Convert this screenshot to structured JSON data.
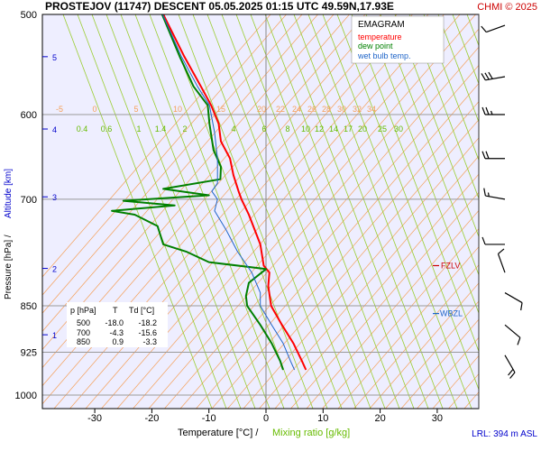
{
  "header": {
    "title": "PROSTEJOV (11747)   DESCENT   05.05.2025 01:15 UTC   49.59N,17.93E",
    "copyright": "CHMI © 2025"
  },
  "legend": {
    "title": "EMAGRAM",
    "items": [
      {
        "label": "temperature",
        "color": "#ff0000"
      },
      {
        "label": "dew point",
        "color": "#008000"
      },
      {
        "label": "wet bulb temp.",
        "color": "#1e64c8"
      }
    ]
  },
  "axes": {
    "ylabel_left": "Pressure [hPa]  /",
    "ylabel_right": "Altitude [km]",
    "xlabel_temp": "Temperature [°C]  /",
    "xlabel_mix": "Mixing ratio [g/kg]",
    "pressure_ticks": [
      "500",
      "600",
      "700",
      "850",
      "925",
      "1000"
    ],
    "temp_ticks": [
      "-30",
      "-20",
      "-10",
      "0",
      "10",
      "20",
      "30"
    ],
    "altitude_ticks": [
      "5",
      "4",
      "3",
      "2",
      "1"
    ],
    "isotherm_labels": [
      "-5",
      "0",
      "5",
      "10",
      "15",
      "20",
      "22",
      "24",
      "26",
      "28",
      "30",
      "32",
      "34"
    ],
    "mixing_labels": [
      "0.4",
      "0.6",
      "1",
      "1.4",
      "2",
      "4",
      "6",
      "8",
      "10",
      "12",
      "14",
      "17",
      "20",
      "25",
      "30"
    ]
  },
  "annotations": {
    "fzlv": "FZLV",
    "wbzl": "WBZL",
    "lrl": "LRL: 394 m ASL"
  },
  "table": {
    "headers": [
      "p [hPa]",
      "T",
      "Td [°C]"
    ],
    "rows": [
      [
        "500",
        "-18.0",
        "-18.2"
      ],
      [
        "700",
        "-4.3",
        "-15.6"
      ],
      [
        "850",
        "0.9",
        "-3.3"
      ]
    ]
  },
  "colors": {
    "temperature": "#ff0000",
    "dewpoint": "#008000",
    "wetbulb": "#1e64c8",
    "isotherm": "#f5a05a",
    "mixing": "#9acd32",
    "plot_bg": "#eeeeff",
    "grid": "#999999",
    "fzlv": "#cc0000",
    "wbzl": "#1e64c8",
    "lrl": "#0000cc",
    "altitude": "#0000cc"
  },
  "chart_data": {
    "type": "line",
    "x_unit": "°C",
    "y_unit": "hPa",
    "ylim": [
      1000,
      500
    ],
    "xlim": [
      -38,
      33
    ],
    "y_scale": "log",
    "grid": true,
    "legend_position": "top-right",
    "altitude_km": [
      {
        "km": 5,
        "p": 540
      },
      {
        "km": 4,
        "p": 616
      },
      {
        "km": 3,
        "p": 697
      },
      {
        "km": 2,
        "p": 794
      },
      {
        "km": 1,
        "p": 896
      }
    ],
    "fzlv_pressure": 790,
    "wbzl_pressure": 862,
    "series": [
      {
        "name": "temperature",
        "points": [
          [
            -18.0,
            500
          ],
          [
            -14.3,
            540
          ],
          [
            -11.4,
            570
          ],
          [
            -9.6,
            590
          ],
          [
            -8.3,
            610
          ],
          [
            -7.9,
            630
          ],
          [
            -6.3,
            650
          ],
          [
            -5.7,
            670
          ],
          [
            -4.8,
            690
          ],
          [
            -4.3,
            700
          ],
          [
            -3.0,
            720
          ],
          [
            -1.0,
            760
          ],
          [
            -0.4,
            790
          ],
          [
            0.6,
            800
          ],
          [
            0.4,
            820
          ],
          [
            0.9,
            850
          ],
          [
            2.8,
            880
          ],
          [
            4.8,
            910
          ],
          [
            6.3,
            940
          ],
          [
            7.0,
            955
          ]
        ]
      },
      {
        "name": "dew point",
        "points": [
          [
            -18.2,
            500
          ],
          [
            -15.1,
            540
          ],
          [
            -12.7,
            570
          ],
          [
            -10.2,
            590
          ],
          [
            -9.9,
            610
          ],
          [
            -9.2,
            640
          ],
          [
            -7.9,
            660
          ],
          [
            -8.0,
            675
          ],
          [
            -18.0,
            687
          ],
          [
            -10.0,
            695
          ],
          [
            -25.0,
            702
          ],
          [
            -16.0,
            708
          ],
          [
            -27.0,
            715
          ],
          [
            -23.0,
            720
          ],
          [
            -19.0,
            735
          ],
          [
            -18.0,
            760
          ],
          [
            -14.0,
            770
          ],
          [
            -10.0,
            785
          ],
          [
            0.0,
            795
          ],
          [
            -3.0,
            815
          ],
          [
            -3.5,
            835
          ],
          [
            -3.3,
            850
          ],
          [
            -1.0,
            880
          ],
          [
            1.0,
            910
          ],
          [
            2.5,
            940
          ],
          [
            3.0,
            955
          ]
        ]
      },
      {
        "name": "wet bulb temp.",
        "points": [
          [
            -18.1,
            500
          ],
          [
            -14.8,
            540
          ],
          [
            -12.0,
            570
          ],
          [
            -9.9,
            590
          ],
          [
            -9.0,
            620
          ],
          [
            -8.5,
            650
          ],
          [
            -8.5,
            680
          ],
          [
            -9.5,
            690
          ],
          [
            -8.5,
            700
          ],
          [
            -9.0,
            715
          ],
          [
            -7.0,
            740
          ],
          [
            -5.0,
            770
          ],
          [
            -2.5,
            800
          ],
          [
            -1.0,
            830
          ],
          [
            -1.0,
            850
          ],
          [
            1.0,
            880
          ],
          [
            3.0,
            910
          ],
          [
            4.3,
            940
          ],
          [
            5.0,
            955
          ]
        ]
      }
    ],
    "wind_barbs": [
      {
        "p": 510,
        "dir": 250,
        "kt": 10
      },
      {
        "p": 560,
        "dir": 260,
        "kt": 30
      },
      {
        "p": 600,
        "dir": 270,
        "kt": 25
      },
      {
        "p": 650,
        "dir": 270,
        "kt": 20
      },
      {
        "p": 700,
        "dir": 280,
        "kt": 15
      },
      {
        "p": 760,
        "dir": 270,
        "kt": 10
      },
      {
        "p": 800,
        "dir": 340,
        "kt": 10
      },
      {
        "p": 830,
        "dir": 120,
        "kt": 10
      },
      {
        "p": 880,
        "dir": 130,
        "kt": 10
      },
      {
        "p": 930,
        "dir": 150,
        "kt": 20
      }
    ]
  }
}
